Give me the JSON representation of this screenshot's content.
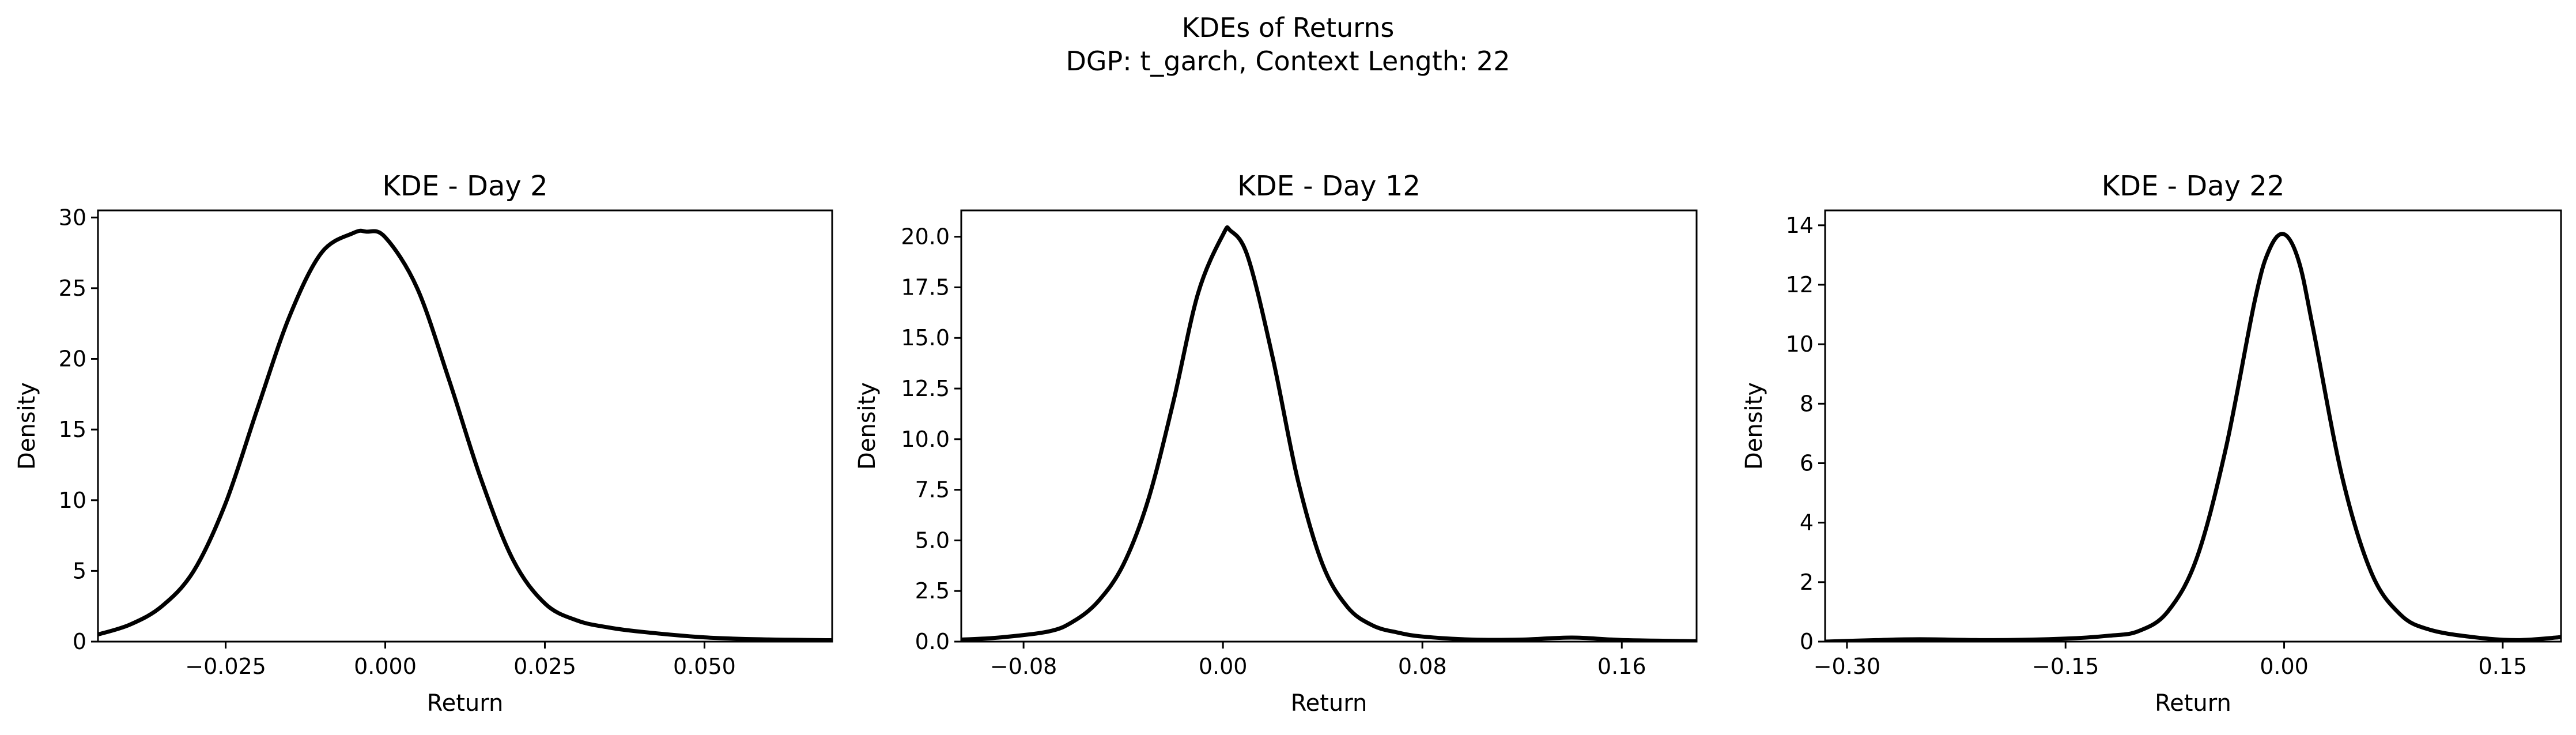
{
  "figure": {
    "title_line1": "KDEs of Returns",
    "title_line2": "DGP: t_garch, Context Length: 22"
  },
  "chart_data": [
    {
      "type": "line",
      "title": "KDE - Day 2",
      "xlabel": "Return",
      "ylabel": "Density",
      "xlim": [
        -0.045,
        0.07
      ],
      "ylim": [
        0,
        30.5
      ],
      "xticks": [
        -0.025,
        0.0,
        0.025,
        0.05
      ],
      "xtick_labels": [
        "−0.025",
        "0.000",
        "0.025",
        "0.050"
      ],
      "yticks": [
        0,
        5,
        10,
        15,
        20,
        25,
        30
      ],
      "ytick_labels": [
        "0",
        "5",
        "10",
        "15",
        "20",
        "25",
        "30"
      ],
      "grid": false,
      "series": [
        {
          "color": "#000000",
          "x": [
            -0.045,
            -0.04,
            -0.035,
            -0.03,
            -0.025,
            -0.02,
            -0.015,
            -0.01,
            -0.005,
            -0.003,
            0.0,
            0.005,
            0.01,
            0.015,
            0.02,
            0.025,
            0.03,
            0.035,
            0.04,
            0.05,
            0.06,
            0.07
          ],
          "y": [
            0.5,
            1.2,
            2.5,
            5.0,
            9.8,
            16.5,
            23.0,
            27.5,
            28.9,
            29.0,
            28.6,
            25.0,
            18.5,
            11.5,
            5.8,
            2.7,
            1.5,
            1.0,
            0.7,
            0.3,
            0.15,
            0.1
          ]
        }
      ]
    },
    {
      "type": "line",
      "title": "KDE - Day 12",
      "xlabel": "Return",
      "ylabel": "Density",
      "xlim": [
        -0.105,
        0.19
      ],
      "ylim": [
        0,
        21.3
      ],
      "xticks": [
        -0.08,
        0.0,
        0.08,
        0.16
      ],
      "xtick_labels": [
        "−0.08",
        "0.00",
        "0.08",
        "0.16"
      ],
      "yticks": [
        0,
        2.5,
        5,
        7.5,
        10,
        12.5,
        15,
        17.5,
        20
      ],
      "ytick_labels": [
        "0.0",
        "2.5",
        "5.0",
        "7.5",
        "10.0",
        "12.5",
        "15.0",
        "17.5",
        "20.0"
      ],
      "grid": false,
      "series": [
        {
          "color": "#000000",
          "x": [
            -0.105,
            -0.09,
            -0.07,
            -0.06,
            -0.05,
            -0.04,
            -0.03,
            -0.02,
            -0.01,
            0.0,
            0.003,
            0.01,
            0.02,
            0.03,
            0.04,
            0.05,
            0.06,
            0.07,
            0.08,
            0.1,
            0.12,
            0.14,
            0.16,
            0.19
          ],
          "y": [
            0.1,
            0.2,
            0.5,
            1.0,
            2.0,
            3.8,
            7.0,
            11.8,
            17.2,
            20.1,
            20.3,
            19.0,
            14.0,
            8.0,
            3.8,
            1.7,
            0.8,
            0.45,
            0.25,
            0.1,
            0.1,
            0.2,
            0.08,
            0.02
          ]
        }
      ]
    },
    {
      "type": "line",
      "title": "KDE - Day 22",
      "xlabel": "Return",
      "ylabel": "Density",
      "xlim": [
        -0.315,
        0.19
      ],
      "ylim": [
        0,
        14.5
      ],
      "xticks": [
        -0.3,
        -0.15,
        0.0,
        0.15
      ],
      "xtick_labels": [
        "−0.30",
        "−0.15",
        "0.00",
        "0.15"
      ],
      "yticks": [
        0,
        2,
        4,
        6,
        8,
        10,
        12,
        14
      ],
      "ytick_labels": [
        "0",
        "2",
        "4",
        "6",
        "8",
        "10",
        "12",
        "14"
      ],
      "grid": false,
      "series": [
        {
          "color": "#000000",
          "x": [
            -0.315,
            -0.28,
            -0.25,
            -0.2,
            -0.15,
            -0.12,
            -0.1,
            -0.08,
            -0.06,
            -0.04,
            -0.02,
            -0.01,
            0.0,
            0.01,
            0.02,
            0.04,
            0.06,
            0.08,
            0.1,
            0.13,
            0.16,
            0.19
          ],
          "y": [
            0.0,
            0.05,
            0.08,
            0.05,
            0.1,
            0.2,
            0.35,
            1.0,
            2.8,
            6.5,
            11.5,
            13.2,
            13.7,
            12.8,
            10.5,
            5.5,
            2.3,
            0.9,
            0.4,
            0.15,
            0.05,
            0.15
          ]
        }
      ]
    }
  ]
}
